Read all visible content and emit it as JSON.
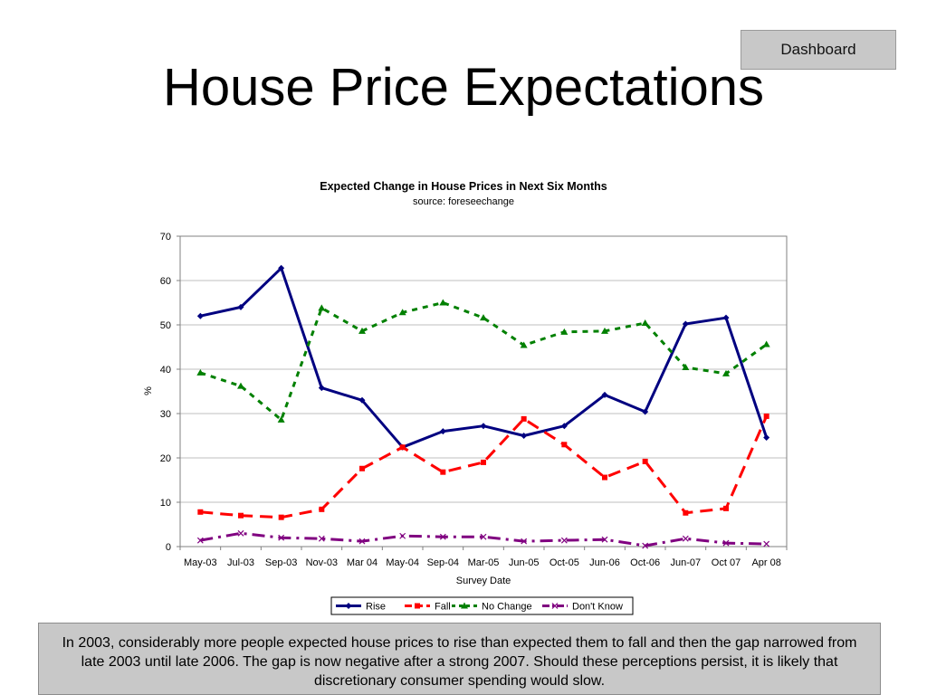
{
  "header": {
    "dashboard_label": "Dashboard",
    "title": "House Price Expectations"
  },
  "caption": "In 2003, considerably more people expected house prices to rise than expected them to fall and then the gap narrowed from late 2003 until late 2006.  The gap is now negative after a strong 2007.  Should these perceptions persist, it is likely that discretionary consumer spending would slow.",
  "chart_data": {
    "type": "line",
    "title": "Expected Change in House Prices in Next Six Months",
    "subtitle": "source: foreseechange",
    "xlabel": "Survey Date",
    "ylabel": "%",
    "ylim": [
      0,
      70
    ],
    "yticks": [
      0,
      10,
      20,
      30,
      40,
      50,
      60,
      70
    ],
    "grid": true,
    "legend": "bottom",
    "categories": [
      "May-03",
      "Jul-03",
      "Sep-03",
      "Nov-03",
      "Mar 04",
      "May-04",
      "Sep-04",
      "Mar-05",
      "Jun-05",
      "Oct-05",
      "Jun-06",
      "Oct-06",
      "Jun-07",
      "Oct 07",
      "Apr 08"
    ],
    "series": [
      {
        "name": "Rise",
        "color": "#000080",
        "dash": "solid",
        "marker": "diamond",
        "values": [
          52,
          54,
          62.8,
          35.8,
          33,
          22.4,
          26,
          27.2,
          25,
          27.2,
          34.2,
          30.4,
          50.2,
          51.6,
          24.6
        ]
      },
      {
        "name": "Fall",
        "color": "#ff0000",
        "dash": "long",
        "marker": "square",
        "values": [
          7.8,
          7,
          6.6,
          8.4,
          17.6,
          22.4,
          16.8,
          19,
          28.8,
          23,
          15.6,
          19.2,
          7.6,
          8.6,
          29.4
        ]
      },
      {
        "name": "No Change",
        "color": "#008000",
        "dash": "short",
        "marker": "triangle",
        "values": [
          39.2,
          36.2,
          28.6,
          53.8,
          48.6,
          52.8,
          55,
          51.6,
          45.4,
          48.4,
          48.6,
          50.4,
          40.4,
          39,
          45.6
        ]
      },
      {
        "name": "Don't Know",
        "color": "#800080",
        "dash": "longdot",
        "marker": "x",
        "values": [
          1.4,
          3,
          2,
          1.8,
          1.2,
          2.4,
          2.2,
          2.2,
          1.2,
          1.4,
          1.6,
          0.2,
          1.8,
          0.8,
          0.6
        ]
      }
    ]
  }
}
